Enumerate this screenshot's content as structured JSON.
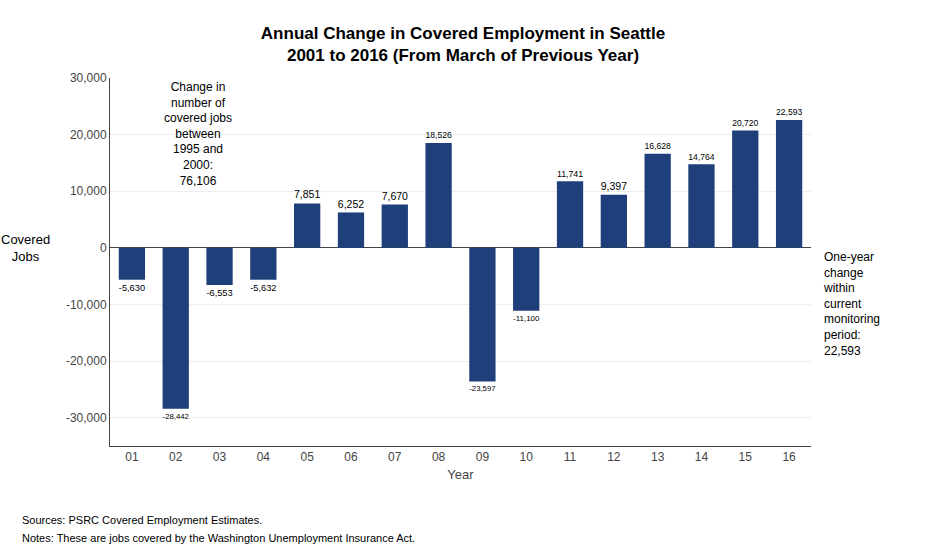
{
  "chart_data": {
    "type": "bar",
    "title": "Annual Change in Covered Employment in Seattle",
    "subtitle": "2001 to 2016 (From March of Previous Year)",
    "xlabel": "Year",
    "ylabel": "Covered\nJobs",
    "categories": [
      "01",
      "02",
      "03",
      "04",
      "05",
      "06",
      "07",
      "08",
      "09",
      "10",
      "11",
      "12",
      "13",
      "14",
      "15",
      "16"
    ],
    "values": [
      -5630,
      -28442,
      -6553,
      -5632,
      7851,
      6252,
      7670,
      18526,
      -23597,
      -11100,
      11741,
      9397,
      16628,
      14764,
      20720,
      22593
    ],
    "value_labels": [
      "-5,630",
      "-28,442",
      "-6,553",
      "-5,632",
      "7,851",
      "6,252",
      "7,670",
      "18,526",
      "-23,597",
      "-11,100",
      "11,741",
      "9,397",
      "16,628",
      "14,764",
      "20,720",
      "22,593"
    ],
    "data_labels": true,
    "color": "#1F3F7A",
    "ylim": [
      -35000,
      30000
    ],
    "yticks": [
      {
        "value": -30000,
        "label": "-30,000"
      },
      {
        "value": -20000,
        "label": "-20,000"
      },
      {
        "value": -10000,
        "label": "-10,000"
      },
      0,
      {
        "value": 10000,
        "label": "10,000"
      },
      {
        "value": 20000,
        "label": "20,000"
      },
      {
        "value": 30000,
        "label": "30,000"
      }
    ],
    "grid": true,
    "annotations": [
      "Change in\nnumber of\ncovered jobs\nbetween\n1995 and\n2000:\n76,106",
      "One-year\nchange\nwithin\ncurrent\nmonitoring\nperiod:\n22,593"
    ],
    "source": "Sources: PSRC Covered Employment Estimates.",
    "notes": "Notes: These are jobs covered by the Washington Unemployment Insurance Act."
  }
}
